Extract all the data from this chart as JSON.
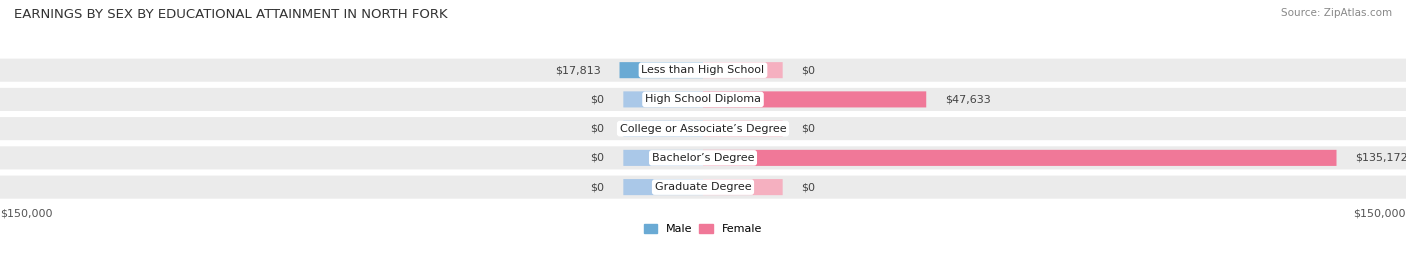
{
  "title": "EARNINGS BY SEX BY EDUCATIONAL ATTAINMENT IN NORTH FORK",
  "source": "Source: ZipAtlas.com",
  "categories": [
    "Less than High School",
    "High School Diploma",
    "College or Associate’s Degree",
    "Bachelor’s Degree",
    "Graduate Degree"
  ],
  "male_values": [
    17813,
    0,
    0,
    0,
    0
  ],
  "female_values": [
    0,
    47633,
    0,
    135172,
    0
  ],
  "male_color": "#6aaad4",
  "female_color": "#f07898",
  "male_stub_color": "#aac8e8",
  "female_stub_color": "#f5b0c0",
  "row_bg_color": "#ebebeb",
  "row_sep_color": "#d8d8d8",
  "max_value": 150000,
  "stub_value": 17000,
  "xlabel_left": "$150,000",
  "xlabel_right": "$150,000",
  "legend_male": "Male",
  "legend_female": "Female",
  "background_color": "#ffffff",
  "title_fontsize": 9.5,
  "label_fontsize": 8.0,
  "value_fontsize": 8.0,
  "source_fontsize": 7.5
}
